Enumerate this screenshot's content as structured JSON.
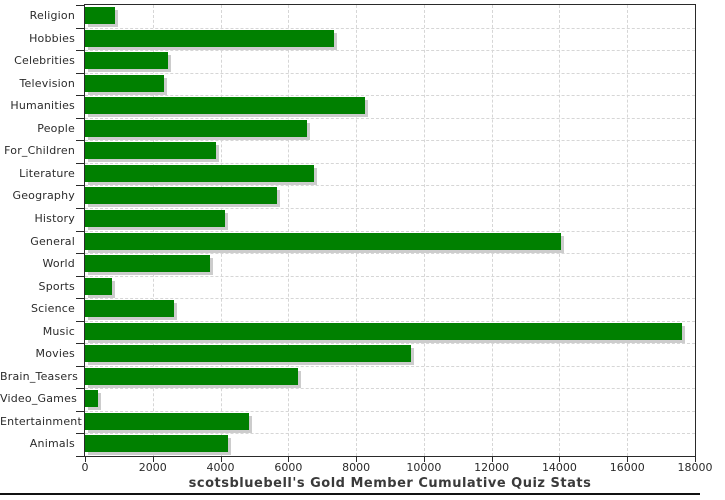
{
  "chart_data": {
    "type": "bar",
    "orientation": "horizontal",
    "title": "scotsbluebell's Gold Member Cumulative Quiz Stats",
    "categories": [
      "Religion",
      "Hobbies",
      "Celebrities",
      "Television",
      "Humanities",
      "People",
      "For_Children",
      "Literature",
      "Geography",
      "History",
      "General",
      "World",
      "Sports",
      "Science",
      "Music",
      "Movies",
      "Brain_Teasers",
      "Video_Games",
      "Entertainment",
      "Animals"
    ],
    "values": [
      880,
      7350,
      2440,
      2340,
      8270,
      6560,
      3860,
      6770,
      5660,
      4130,
      14060,
      3690,
      790,
      2640,
      17610,
      9620,
      6280,
      390,
      4850,
      4230
    ],
    "xlabel": "",
    "ylabel": "",
    "xlim": [
      0,
      18000
    ],
    "x_ticks": [
      0,
      2000,
      4000,
      6000,
      8000,
      10000,
      12000,
      14000,
      16000,
      18000
    ],
    "grid": "dashed",
    "legend_position": "none",
    "colors": {
      "bar": "#008000",
      "bar_shadow": "#cccccc",
      "gridline": "#d6d6d6",
      "axis": "#2a2a2a",
      "text": "#2b2b2b",
      "title_text": "#3a3a3a",
      "background": "#ffffff"
    }
  }
}
